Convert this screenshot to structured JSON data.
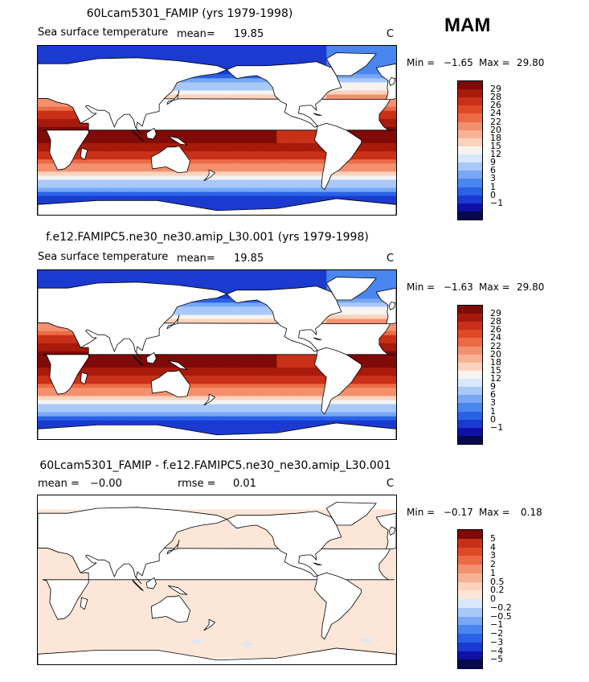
{
  "season": "MAM",
  "colors": {
    "abs_scale": [
      "#08084f",
      "#1010a8",
      "#1a3ad0",
      "#2a62e6",
      "#4a86ef",
      "#78a8f4",
      "#a8c8f8",
      "#d8e8fb",
      "#f6f3f1",
      "#fbd3bc",
      "#f7b295",
      "#f3906f",
      "#ec6a45",
      "#df4a26",
      "#c93018",
      "#a81a0c",
      "#7f0a08"
    ],
    "diff_scale": [
      "#08084f",
      "#1010a8",
      "#1a3ad0",
      "#2a62e6",
      "#4a86ef",
      "#78a8f4",
      "#a8c8f8",
      "#d8e8fb",
      "#fbe6d8",
      "#fbd3bc",
      "#f7b295",
      "#f3906f",
      "#ec6a45",
      "#df4a26",
      "#c93018",
      "#7f0a08"
    ],
    "land": "#ffffff",
    "coast": "#000000"
  },
  "panels": [
    {
      "title": "60Lcam5301_FAMIP (yrs 1979-1998)",
      "variable": "Sea surface temperature",
      "mean_label": "mean=",
      "mean_value": "19.85",
      "units": "C",
      "min_label": "Min =",
      "min_value": "−1.65",
      "max_label": "Max =",
      "max_value": "29.80",
      "levels": [
        "29",
        "28",
        "26",
        "24",
        "22",
        "20",
        "18",
        "15",
        "12",
        "9",
        "6",
        "3",
        "1",
        "0",
        "−1"
      ]
    },
    {
      "title": "f.e12.FAMIPC5.ne30_ne30.amip_L30.001 (yrs 1979-1998)",
      "variable": "Sea surface temperature",
      "mean_label": "mean=",
      "mean_value": "19.85",
      "units": "C",
      "min_label": "Min =",
      "min_value": "−1.63",
      "max_label": "Max =",
      "max_value": "29.80",
      "levels": [
        "29",
        "28",
        "26",
        "24",
        "22",
        "20",
        "18",
        "15",
        "12",
        "9",
        "6",
        "3",
        "1",
        "0",
        "−1"
      ]
    },
    {
      "title": "60Lcam5301_FAMIP - f.e12.FAMIPC5.ne30_ne30.amip_L30.001",
      "mean_label": "mean =",
      "mean_value": "−0.00",
      "rmse_label": "rmse =",
      "rmse_value": "0.01",
      "units": "C",
      "min_label": "Min =",
      "min_value": "−0.17",
      "max_label": "Max =",
      "max_value": "0.18",
      "levels": [
        "5",
        "4",
        "3",
        "2",
        "1",
        "0.5",
        "0.2",
        "0",
        "−0.2",
        "−0.5",
        "−1",
        "−2",
        "−3",
        "−4",
        "−5"
      ]
    }
  ]
}
